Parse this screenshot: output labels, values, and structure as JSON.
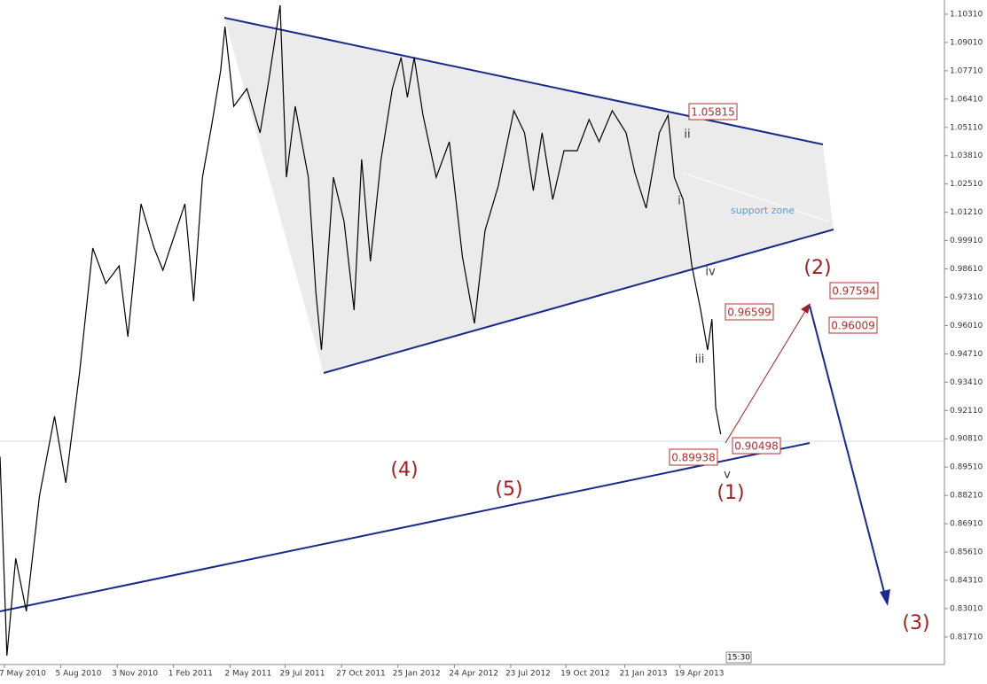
{
  "chart_data": {
    "type": "line",
    "x": [
      "2010-04-30",
      "2010-05-11",
      "2010-05-25",
      "2010-06-11",
      "2010-07-02",
      "2010-07-26",
      "2010-08-13",
      "2010-09-04",
      "2010-09-25",
      "2010-10-16",
      "2010-11-06",
      "2010-11-20",
      "2010-12-11",
      "2011-01-01",
      "2011-01-15",
      "2011-02-05",
      "2011-02-19",
      "2011-03-05",
      "2011-03-19",
      "2011-04-03",
      "2011-04-17",
      "2011-04-24",
      "2011-05-08",
      "2011-05-29",
      "2011-06-19",
      "2011-07-03",
      "2011-07-21",
      "2011-07-31",
      "2011-08-14",
      "2011-09-04",
      "2011-09-16",
      "2011-09-25",
      "2011-10-14",
      "2011-10-31",
      "2011-11-16",
      "2011-11-28",
      "2011-12-12",
      "2011-12-29",
      "2012-01-16",
      "2012-01-30",
      "2012-02-09",
      "2012-02-20",
      "2012-03-05",
      "2012-03-26",
      "2012-04-16",
      "2012-05-07",
      "2012-05-26",
      "2012-06-12",
      "2012-07-03",
      "2012-07-28",
      "2012-08-14",
      "2012-08-28",
      "2012-09-11",
      "2012-09-28",
      "2012-10-16",
      "2012-11-06",
      "2012-11-25",
      "2012-12-11",
      "2013-01-01",
      "2013-01-23",
      "2013-02-06",
      "2013-02-24",
      "2013-03-17",
      "2013-03-31",
      "2013-04-10",
      "2013-04-24",
      "2013-05-08",
      "2013-05-22",
      "2013-06-02",
      "2013-06-09",
      "2013-06-15",
      "2013-06-23"
    ],
    "series": [
      {
        "color": "#000000",
        "values": [
          0.8999,
          0.8085,
          0.8532,
          0.8289,
          0.8818,
          0.9184,
          0.8879,
          0.9387,
          0.9957,
          0.9794,
          0.9875,
          0.955,
          1.016,
          0.9957,
          0.9855,
          1.0038,
          1.016,
          0.9713,
          1.0282,
          1.0526,
          1.0771,
          1.0974,
          1.0608,
          1.0689,
          1.0486,
          1.073,
          1.1072,
          1.0282,
          1.0608,
          1.0282,
          0.9753,
          0.9489,
          1.0282,
          1.0079,
          0.9672,
          1.0364,
          0.9896,
          1.0364,
          1.0689,
          1.0832,
          1.0649,
          1.0832,
          1.0567,
          1.0282,
          1.0445,
          0.9916,
          0.9611,
          1.0038,
          1.0241,
          1.0588,
          1.0486,
          1.0221,
          1.0486,
          1.018,
          1.0404,
          1.0404,
          1.0547,
          1.0445,
          1.0588,
          1.0486,
          1.0303,
          1.014,
          1.0486,
          1.0567,
          1.0282,
          1.018,
          0.9875,
          0.9672,
          0.9489,
          0.9631,
          0.9224,
          0.9102
        ]
      }
    ],
    "xlim": [
      "2010-04-30",
      "2014-06-15"
    ],
    "xticks": [
      {
        "value": "2010-05-07",
        "label": "7 May 2010"
      },
      {
        "value": "2010-08-05",
        "label": "5 Aug 2010"
      },
      {
        "value": "2010-11-03",
        "label": "3 Nov 2010"
      },
      {
        "value": "2011-02-01",
        "label": "1 Feb 2011"
      },
      {
        "value": "2011-05-02",
        "label": "2 May 2011"
      },
      {
        "value": "2011-07-29",
        "label": "29 Jul 2011"
      },
      {
        "value": "2011-10-27",
        "label": "27 Oct 2011"
      },
      {
        "value": "2012-01-25",
        "label": "25 Jan 2012"
      },
      {
        "value": "2012-04-24",
        "label": "24 Apr 2012"
      },
      {
        "value": "2012-07-23",
        "label": "23 Jul 2012"
      },
      {
        "value": "2012-10-19",
        "label": "19 Oct 2012"
      },
      {
        "value": "2013-01-21",
        "label": "21 Jan 2013"
      },
      {
        "value": "2013-04-19",
        "label": "19 Apr 2013"
      }
    ],
    "ylim": [
      0.80444,
      1.10961
    ],
    "yticks": [
      {
        "value": 1.1031,
        "label": "1.10310"
      },
      {
        "value": 1.0901,
        "label": "1.09010"
      },
      {
        "value": 1.0771,
        "label": "1.07710"
      },
      {
        "value": 1.0641,
        "label": "1.06410"
      },
      {
        "value": 1.0511,
        "label": "1.05110"
      },
      {
        "value": 1.0381,
        "label": "1.03810"
      },
      {
        "value": 1.0251,
        "label": "1.02510"
      },
      {
        "value": 1.0121,
        "label": "1.01210"
      },
      {
        "value": 0.9991,
        "label": "0.99910"
      },
      {
        "value": 0.9861,
        "label": "0.98610"
      },
      {
        "value": 0.9731,
        "label": "0.97310"
      },
      {
        "value": 0.9601,
        "label": "0.96010"
      },
      {
        "value": 0.9471,
        "label": "0.94710"
      },
      {
        "value": 0.9341,
        "label": "0.93410"
      },
      {
        "value": 0.9211,
        "label": "0.92110"
      },
      {
        "value": 0.9081,
        "label": "0.90810"
      },
      {
        "value": 0.8951,
        "label": "0.89510"
      },
      {
        "value": 0.8821,
        "label": "0.88210"
      },
      {
        "value": 0.8691,
        "label": "0.86910"
      },
      {
        "value": 0.8561,
        "label": "0.85610"
      },
      {
        "value": 0.8431,
        "label": "0.84310"
      },
      {
        "value": 0.8301,
        "label": "0.83010"
      },
      {
        "value": 0.8171,
        "label": "0.81710"
      }
    ],
    "price_labels": [
      "1.05815",
      "0.96599",
      "0.97594",
      "0.96009",
      "0.90498",
      "0.89938"
    ],
    "wave_labels": [
      "(1)",
      "(2)",
      "(3)",
      "(4)",
      "(5)",
      "i",
      "ii",
      "iii",
      "iv",
      "v"
    ],
    "zone_label": "support zone",
    "time_label": "15:30"
  }
}
